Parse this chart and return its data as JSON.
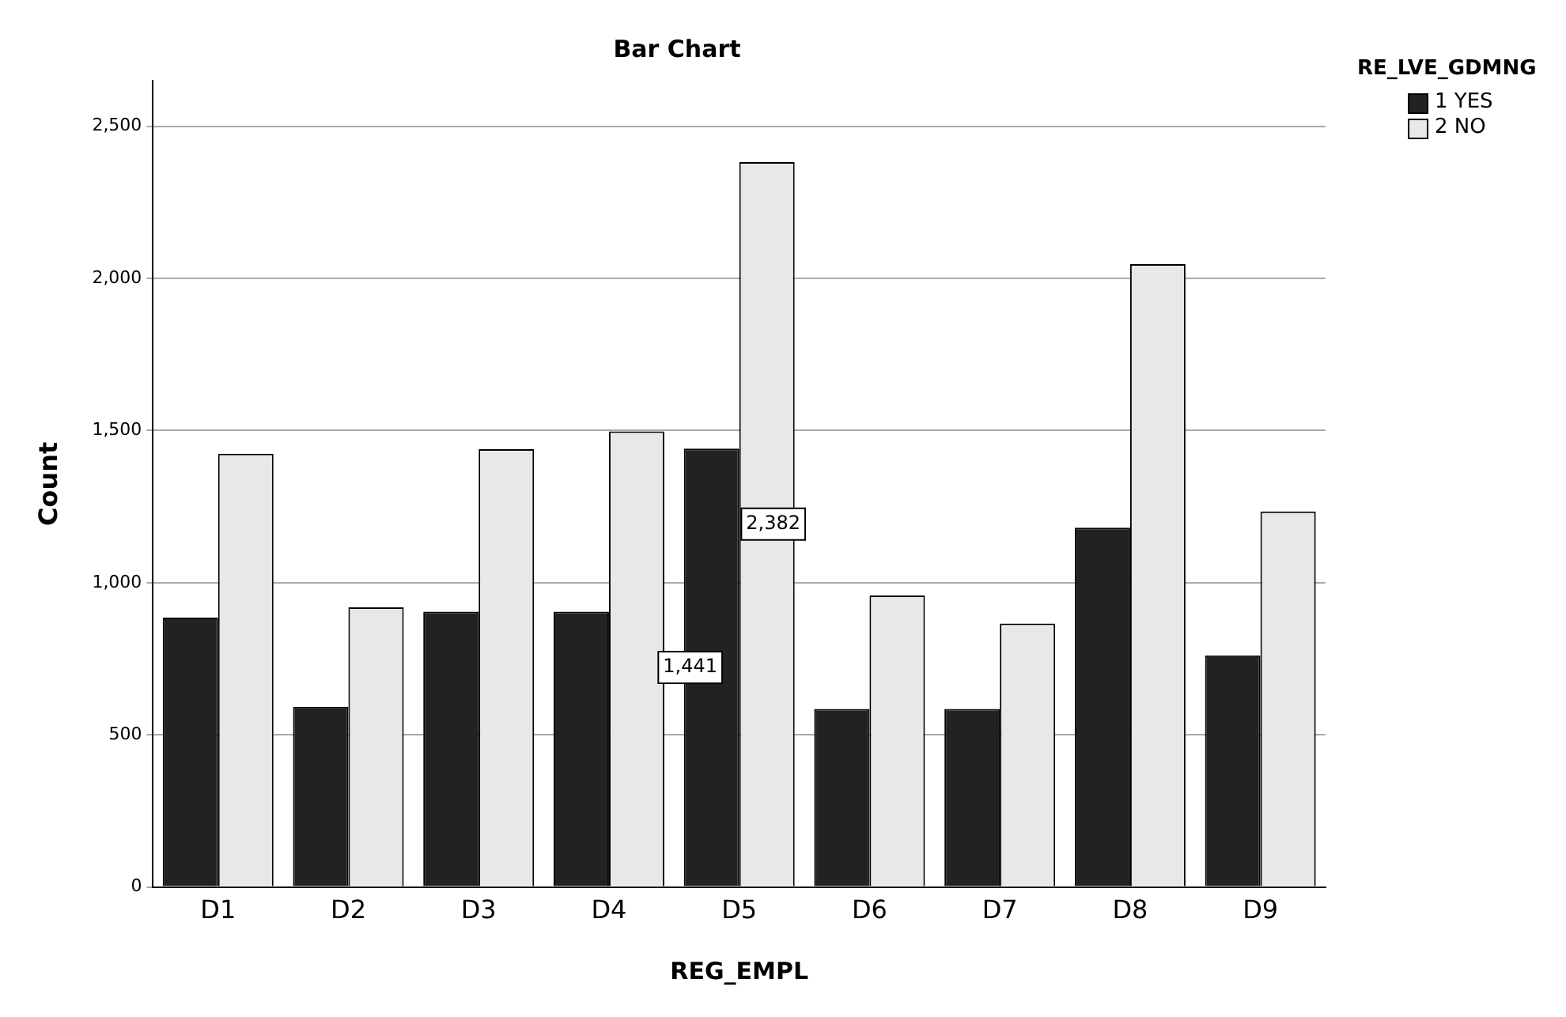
{
  "chart_data": {
    "type": "bar",
    "title": "Bar Chart",
    "xlabel": "REG_EMPL",
    "ylabel": "Count",
    "legend_title": "RE_LVE_GDMNG",
    "categories": [
      "D1",
      "D2",
      "D3",
      "D4",
      "D5",
      "D6",
      "D7",
      "D8",
      "D9"
    ],
    "series": [
      {
        "name": "1 YES",
        "color": "#222222",
        "values": [
          885,
          592,
          905,
          905,
          1441,
          585,
          585,
          1181,
          761
        ],
        "value_labels": [
          null,
          null,
          null,
          null,
          "1,441",
          null,
          null,
          null,
          null
        ]
      },
      {
        "name": "2 NO",
        "color": "#e8e8e8",
        "values": [
          1424,
          919,
          1439,
          1497,
          2382,
          958,
          866,
          2047,
          1234
        ],
        "value_labels": [
          null,
          null,
          null,
          null,
          "2,382",
          null,
          null,
          null,
          null
        ]
      }
    ],
    "ylim": [
      0,
      2650
    ],
    "yticks": [
      {
        "value": 0,
        "label": "0"
      },
      {
        "value": 500,
        "label": "500"
      },
      {
        "value": 1000,
        "label": "1,000"
      },
      {
        "value": 1500,
        "label": "1,500"
      },
      {
        "value": 2000,
        "label": "2,000"
      },
      {
        "value": 2500,
        "label": "2,500"
      }
    ],
    "grid": "y",
    "legend": "top right"
  }
}
